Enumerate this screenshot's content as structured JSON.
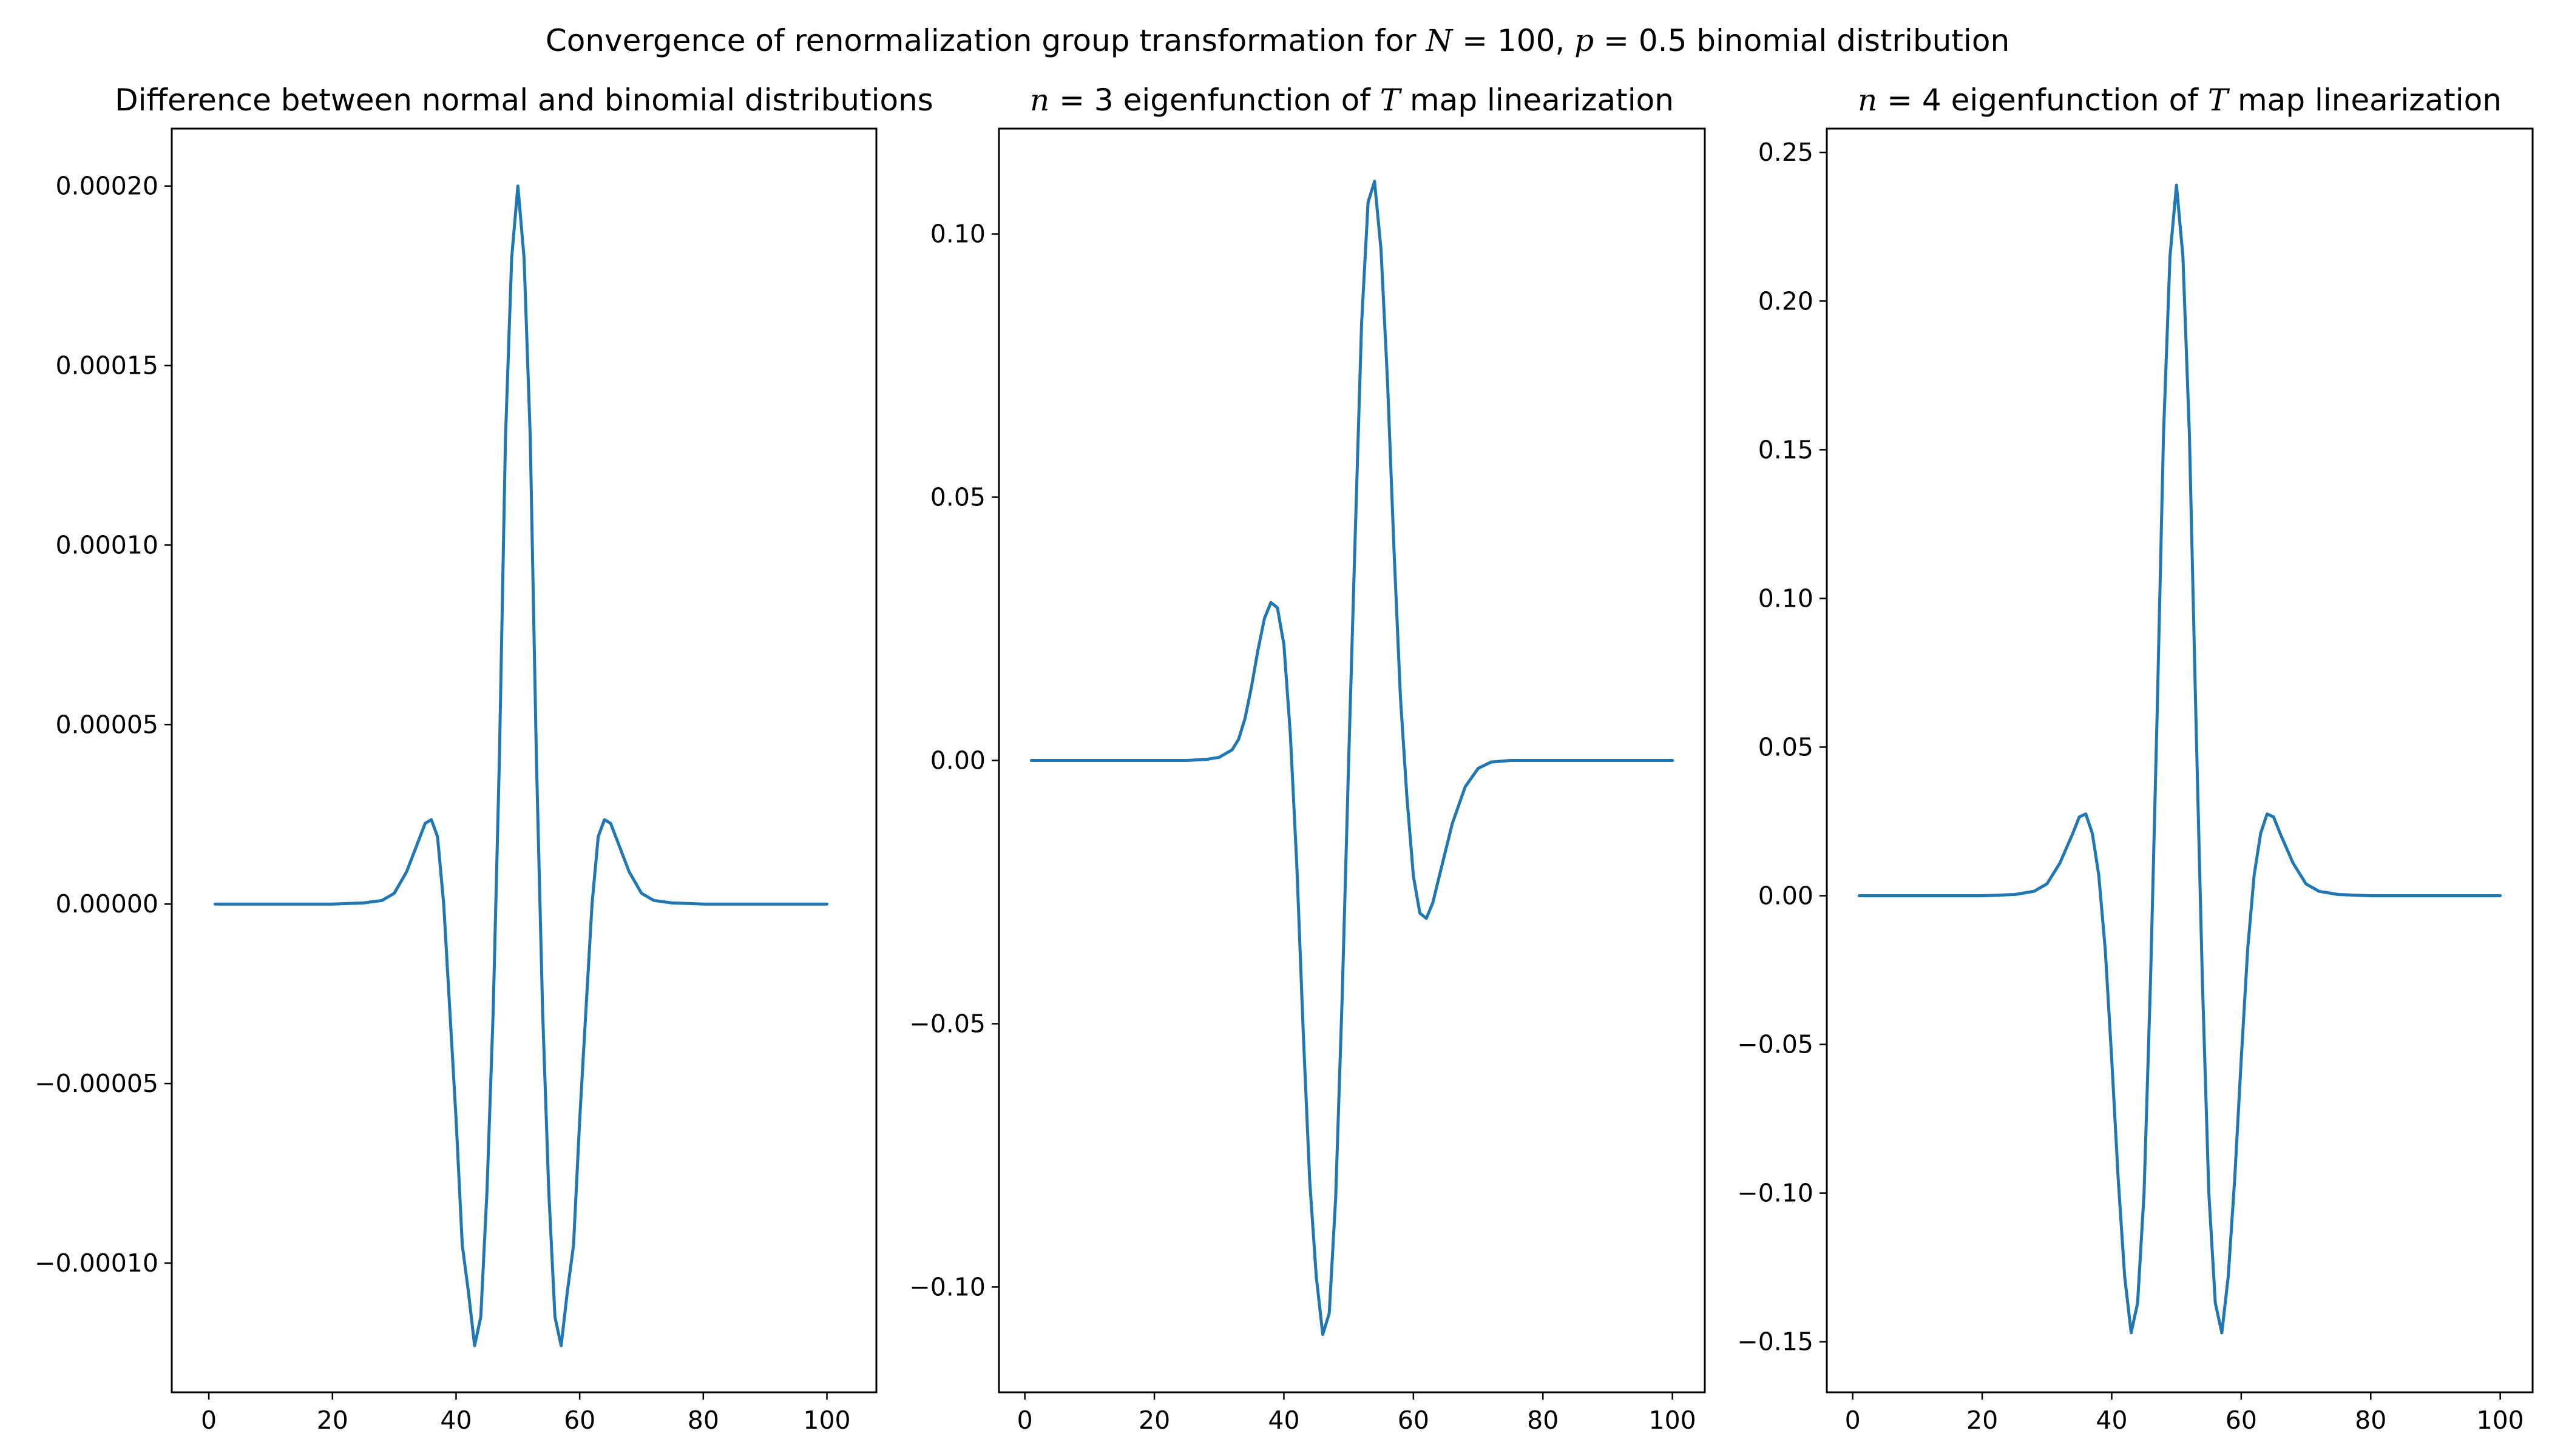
{
  "figure": {
    "suptitle_parts": [
      "Convergence of renormalization group transformation for ",
      "N",
      " = 100, ",
      "p",
      " = 0.5 binomial distribution"
    ]
  },
  "chart_data": [
    {
      "type": "line",
      "title_parts": [
        "Difference between normal and binomial distributions"
      ],
      "xlabel": "",
      "ylabel": "",
      "xlim": [
        -6,
        108
      ],
      "ylim": [
        -0.000136,
        0.000216
      ],
      "xticks": [
        0,
        20,
        40,
        60,
        80,
        100
      ],
      "xtick_labels": [
        "0",
        "20",
        "40",
        "60",
        "80",
        "100"
      ],
      "yticks": [
        -0.0001,
        -5e-05,
        0,
        5e-05,
        0.0001,
        0.00015,
        0.0002
      ],
      "ytick_labels": [
        "−0.00010",
        "−0.00005",
        "0.00000",
        "0.00005",
        "0.00010",
        "0.00015",
        "0.00020"
      ],
      "grid": false,
      "color": "#1f77b4",
      "series": [
        {
          "x": [
            1,
            20,
            25,
            28,
            30,
            32,
            34,
            35,
            36,
            37,
            38,
            39,
            40,
            41,
            42,
            43,
            44,
            45,
            46,
            47,
            48,
            49,
            50,
            51,
            52,
            53,
            54,
            55,
            56,
            57,
            58,
            59,
            60,
            61,
            62,
            63,
            64,
            65,
            66,
            68,
            70,
            72,
            75,
            80,
            100
          ],
          "values": [
            0,
            0,
            3e-07,
            1e-06,
            3e-06,
            9e-06,
            1.8e-05,
            2.25e-05,
            2.35e-05,
            1.88e-05,
            0,
            -3e-05,
            -6e-05,
            -9.5e-05,
            -0.000108,
            -0.000123,
            -0.000115,
            -8e-05,
            -3e-05,
            4e-05,
            0.00013,
            0.00018,
            0.0002,
            0.00018,
            0.00013,
            4e-05,
            -3e-05,
            -8e-05,
            -0.000115,
            -0.000123,
            -0.000108,
            -9.5e-05,
            -6e-05,
            -3e-05,
            0,
            1.88e-05,
            2.35e-05,
            2.25e-05,
            1.8e-05,
            9e-06,
            3e-06,
            1e-06,
            3e-07,
            0,
            0
          ]
        }
      ]
    },
    {
      "type": "line",
      "title_parts": [
        "n",
        " = 3 eigenfunction of ",
        "T",
        " map linearization"
      ],
      "xlabel": "",
      "ylabel": "",
      "xlim": [
        -4,
        105
      ],
      "ylim": [
        -0.12,
        0.12
      ],
      "xticks": [
        0,
        20,
        40,
        60,
        80,
        100
      ],
      "xtick_labels": [
        "0",
        "20",
        "40",
        "60",
        "80",
        "100"
      ],
      "yticks": [
        -0.1,
        -0.05,
        0,
        0.05,
        0.1
      ],
      "ytick_labels": [
        "−0.10",
        "−0.05",
        "0.00",
        "0.05",
        "0.10"
      ],
      "grid": false,
      "color": "#1f77b4",
      "series": [
        {
          "x": [
            1,
            20,
            25,
            28,
            30,
            32,
            33,
            34,
            35,
            36,
            37,
            38,
            39,
            40,
            41,
            42,
            43,
            44,
            45,
            46,
            47,
            48,
            49,
            50,
            51,
            52,
            53,
            54,
            55,
            56,
            57,
            58,
            59,
            60,
            61,
            62,
            63,
            64,
            65,
            66,
            68,
            70,
            72,
            75,
            80,
            100
          ],
          "values": [
            0,
            0,
            0,
            0.0002,
            0.0006,
            0.002,
            0.004,
            0.008,
            0.014,
            0.021,
            0.027,
            0.03,
            0.029,
            0.022,
            0.005,
            -0.02,
            -0.052,
            -0.08,
            -0.098,
            -0.109,
            -0.105,
            -0.083,
            -0.045,
            0,
            0.042,
            0.083,
            0.106,
            0.11,
            0.097,
            0.072,
            0.04,
            0.012,
            -0.007,
            -0.022,
            -0.029,
            -0.03,
            -0.027,
            -0.022,
            -0.017,
            -0.012,
            -0.005,
            -0.0015,
            -0.0003,
            0,
            0,
            0
          ]
        }
      ]
    },
    {
      "type": "line",
      "title_parts": [
        "n",
        " = 4 eigenfunction of ",
        "T",
        " map linearization"
      ],
      "xlabel": "",
      "ylabel": "",
      "xlim": [
        -4,
        105
      ],
      "ylim": [
        -0.167,
        0.258
      ],
      "xticks": [
        0,
        20,
        40,
        60,
        80,
        100
      ],
      "xtick_labels": [
        "0",
        "20",
        "40",
        "60",
        "80",
        "100"
      ],
      "yticks": [
        -0.15,
        -0.1,
        -0.05,
        0,
        0.05,
        0.1,
        0.15,
        0.2,
        0.25
      ],
      "ytick_labels": [
        "−0.15",
        "−0.10",
        "−0.05",
        "0.00",
        "0.05",
        "0.10",
        "0.15",
        "0.20",
        "0.25"
      ],
      "grid": false,
      "color": "#1f77b4",
      "series": [
        {
          "x": [
            1,
            20,
            25,
            28,
            30,
            32,
            34,
            35,
            36,
            37,
            38,
            39,
            40,
            41,
            42,
            43,
            44,
            45,
            46,
            47,
            48,
            49,
            50,
            51,
            52,
            53,
            54,
            55,
            56,
            57,
            58,
            59,
            60,
            61,
            62,
            63,
            64,
            65,
            66,
            68,
            70,
            72,
            75,
            80,
            100
          ],
          "values": [
            0,
            0,
            0.0004,
            0.0015,
            0.004,
            0.011,
            0.021,
            0.0265,
            0.0275,
            0.021,
            0.007,
            -0.018,
            -0.055,
            -0.095,
            -0.128,
            -0.147,
            -0.137,
            -0.1,
            -0.028,
            0.06,
            0.155,
            0.215,
            0.239,
            0.215,
            0.155,
            0.06,
            -0.028,
            -0.1,
            -0.137,
            -0.147,
            -0.128,
            -0.095,
            -0.055,
            -0.018,
            0.007,
            0.021,
            0.0275,
            0.0265,
            0.021,
            0.011,
            0.004,
            0.0015,
            0.0004,
            0,
            0
          ]
        }
      ]
    }
  ]
}
